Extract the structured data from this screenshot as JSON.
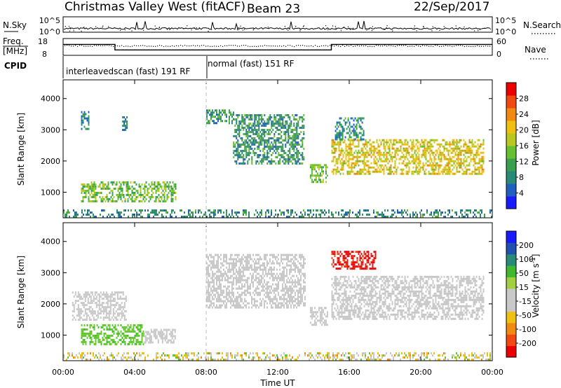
{
  "header": {
    "title": "Christmas Valley West (fitACF)",
    "beam": "Beam 23",
    "date": "22/Sep/2017"
  },
  "colors": {
    "power_scale": [
      "#1a1aff",
      "#2060c0",
      "#2a8a7a",
      "#3aa050",
      "#66c030",
      "#b8c820",
      "#f0c010",
      "#f08a10",
      "#f04a10",
      "#ee0000"
    ],
    "velocity_scale": [
      "#ee0000",
      "#f04a10",
      "#f08a10",
      "#f0c010",
      "#c8c8c8",
      "#c8c8c8",
      "#a0d040",
      "#40b830",
      "#2a8a7a",
      "#2050b0",
      "#1a1aff"
    ],
    "ground_scatter": "#c8c8c8",
    "velocity_green": "#66c830",
    "velocity_red": "#e81010"
  },
  "chart_data": [
    {
      "type": "line",
      "panel": "noise",
      "left_label": "N.Sky",
      "right_label": "N.Search",
      "left_ticks": [
        "10^5",
        "10^0"
      ],
      "right_ticks": [
        "10^5",
        "10^0"
      ],
      "right_legend_style": "dotted"
    },
    {
      "type": "line",
      "panel": "frequency",
      "left_label_1": "Freq.",
      "left_label_2": "[MHz]",
      "right_label": "Nave",
      "left_ticks": [
        "18",
        "8"
      ],
      "right_ticks": [
        "60",
        "0"
      ],
      "ylim_left": [
        8,
        18
      ],
      "ylim_right": [
        0,
        60
      ],
      "x": [
        0,
        2.9,
        2.9,
        15.0,
        15.0,
        24.0
      ],
      "y": [
        14.5,
        14.5,
        11.2,
        11.2,
        14.5,
        14.5
      ],
      "nave_level": 50
    },
    {
      "type": "table",
      "panel": "cpid",
      "label": "CPID",
      "segments": [
        {
          "start": 0,
          "end": 8.0,
          "text": "interleavedscan (fast) 191 RF"
        },
        {
          "start": 8.0,
          "end": 24.0,
          "text": "normal (fast) 151 RF"
        }
      ]
    },
    {
      "type": "heatmap",
      "panel": "power",
      "ylabel": "Slant Range [km]",
      "xlim": [
        0,
        24
      ],
      "ylim": [
        180,
        4600
      ],
      "yticks": [
        1000,
        2000,
        3000,
        4000
      ],
      "colorbar_label": "Power [dB]",
      "colorbar_ticks": [
        "4",
        "8",
        "12",
        "16",
        "20",
        "24",
        "28"
      ],
      "colorbar_range": [
        0,
        32
      ],
      "blobs": [
        {
          "x0": 1.0,
          "x1": 6.3,
          "y0": 700,
          "y1": 1350,
          "value": 14
        },
        {
          "x0": 1.0,
          "x1": 1.4,
          "y0": 3000,
          "y1": 3600,
          "value": 7
        },
        {
          "x0": 3.3,
          "x1": 3.6,
          "y0": 3000,
          "y1": 3500,
          "value": 7
        },
        {
          "x0": 8.0,
          "x1": 9.5,
          "y0": 3200,
          "y1": 3650,
          "value": 9
        },
        {
          "x0": 9.5,
          "x1": 13.5,
          "y0": 1900,
          "y1": 3500,
          "value": 9
        },
        {
          "x0": 13.8,
          "x1": 14.8,
          "y0": 1300,
          "y1": 1900,
          "value": 14
        },
        {
          "x0": 15.0,
          "x1": 23.5,
          "y0": 1600,
          "y1": 2700,
          "value": 20
        },
        {
          "x0": 15.2,
          "x1": 16.8,
          "y0": 2700,
          "y1": 3400,
          "value": 8
        },
        {
          "x0": 0.0,
          "x1": 24.0,
          "y0": 200,
          "y1": 450,
          "value": 8
        }
      ]
    },
    {
      "type": "heatmap",
      "panel": "velocity",
      "ylabel": "Slant Range [km]",
      "xlabel": "Time UT",
      "xlim": [
        0,
        24
      ],
      "ylim": [
        180,
        4600
      ],
      "yticks": [
        1000,
        2000,
        3000,
        4000
      ],
      "xtick_labels": [
        "00:00",
        "04:00",
        "08:00",
        "12:00",
        "16:00",
        "20:00",
        "00:00"
      ],
      "xtick_values": [
        0,
        4,
        8,
        12,
        16,
        20,
        24
      ],
      "colorbar_label": "Velocity [m s^-1]",
      "colorbar_ticks": [
        "-200",
        "-100",
        "-50",
        "-15",
        "15",
        "50",
        "100",
        "200"
      ],
      "blobs": [
        {
          "x0": 1.0,
          "x1": 4.5,
          "y0": 700,
          "y1": 1350,
          "value": "positive"
        },
        {
          "x0": 4.5,
          "x1": 6.3,
          "y0": 750,
          "y1": 1200,
          "value": "ground"
        },
        {
          "x0": 0.5,
          "x1": 3.5,
          "y0": 1500,
          "y1": 2400,
          "value": "ground"
        },
        {
          "x0": 8.0,
          "x1": 13.5,
          "y0": 1900,
          "y1": 3600,
          "value": "ground"
        },
        {
          "x0": 13.8,
          "x1": 14.8,
          "y0": 1300,
          "y1": 1900,
          "value": "ground"
        },
        {
          "x0": 15.0,
          "x1": 17.5,
          "y0": 3100,
          "y1": 3700,
          "value": "negative"
        },
        {
          "x0": 15.0,
          "x1": 23.5,
          "y0": 1500,
          "y1": 2900,
          "value": "ground"
        },
        {
          "x0": 0.0,
          "x1": 24.0,
          "y0": 200,
          "y1": 450,
          "value": "mixed"
        }
      ]
    }
  ]
}
